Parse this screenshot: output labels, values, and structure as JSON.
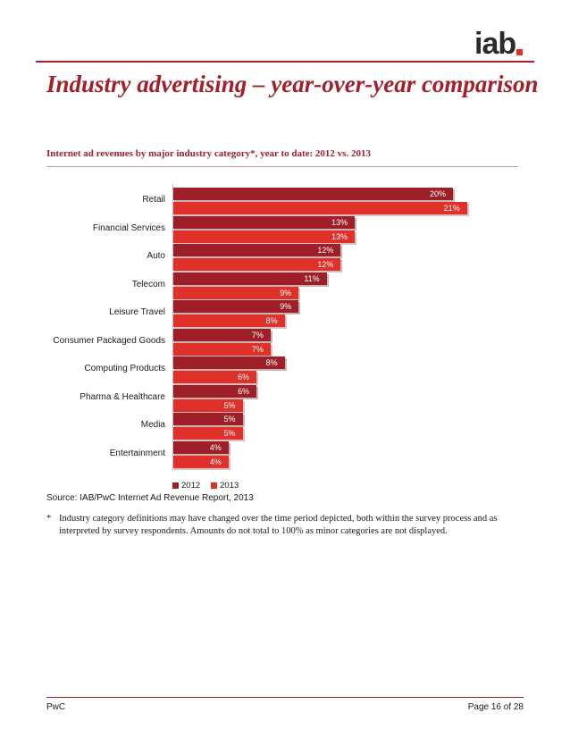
{
  "logo": {
    "text": "iab"
  },
  "page": {
    "title": "Industry advertising – year-over-year comparison",
    "subtitle": "Internet ad revenues by major industry category*, year to date: 2012 vs. 2013",
    "source": "Source: IAB/PwC Internet Ad Revenue Report, 2013",
    "footnote_mark": "*",
    "footnote": "Industry category definitions may have changed over the time period depicted, both within the survey process and as interpreted by survey respondents. Amounts do not total to 100% as minor categories are not displayed.",
    "footer_left": "PwC",
    "footer_right": "Page 16 of 28"
  },
  "colors": {
    "accent": "#a3202a",
    "series_2012": "#9e1f28",
    "series_2013": "#e0302a"
  },
  "chart_data": {
    "type": "bar",
    "orientation": "horizontal",
    "categories": [
      "Retail",
      "Financial Services",
      "Auto",
      "Telecom",
      "Leisure Travel",
      "Consumer Packaged Goods",
      "Computing Products",
      "Pharma & Healthcare",
      "Media",
      "Entertainment"
    ],
    "series": [
      {
        "name": "2012",
        "values": [
          20,
          13,
          12,
          11,
          9,
          7,
          8,
          6,
          5,
          4
        ],
        "labels": [
          "20%",
          "13%",
          "12%",
          "11%",
          "9%",
          "7%",
          "8%",
          "6%",
          "5%",
          "4%"
        ]
      },
      {
        "name": "2013",
        "values": [
          21,
          13,
          12,
          9,
          8,
          7,
          6,
          5,
          5,
          4
        ],
        "labels": [
          "21%",
          "13%",
          "12%",
          "9%",
          "8%",
          "7%",
          "6%",
          "5%",
          "5%",
          "4%"
        ]
      }
    ],
    "unit": "%",
    "xlim": [
      0,
      22
    ],
    "legend": "bottom-left",
    "grid": false
  }
}
